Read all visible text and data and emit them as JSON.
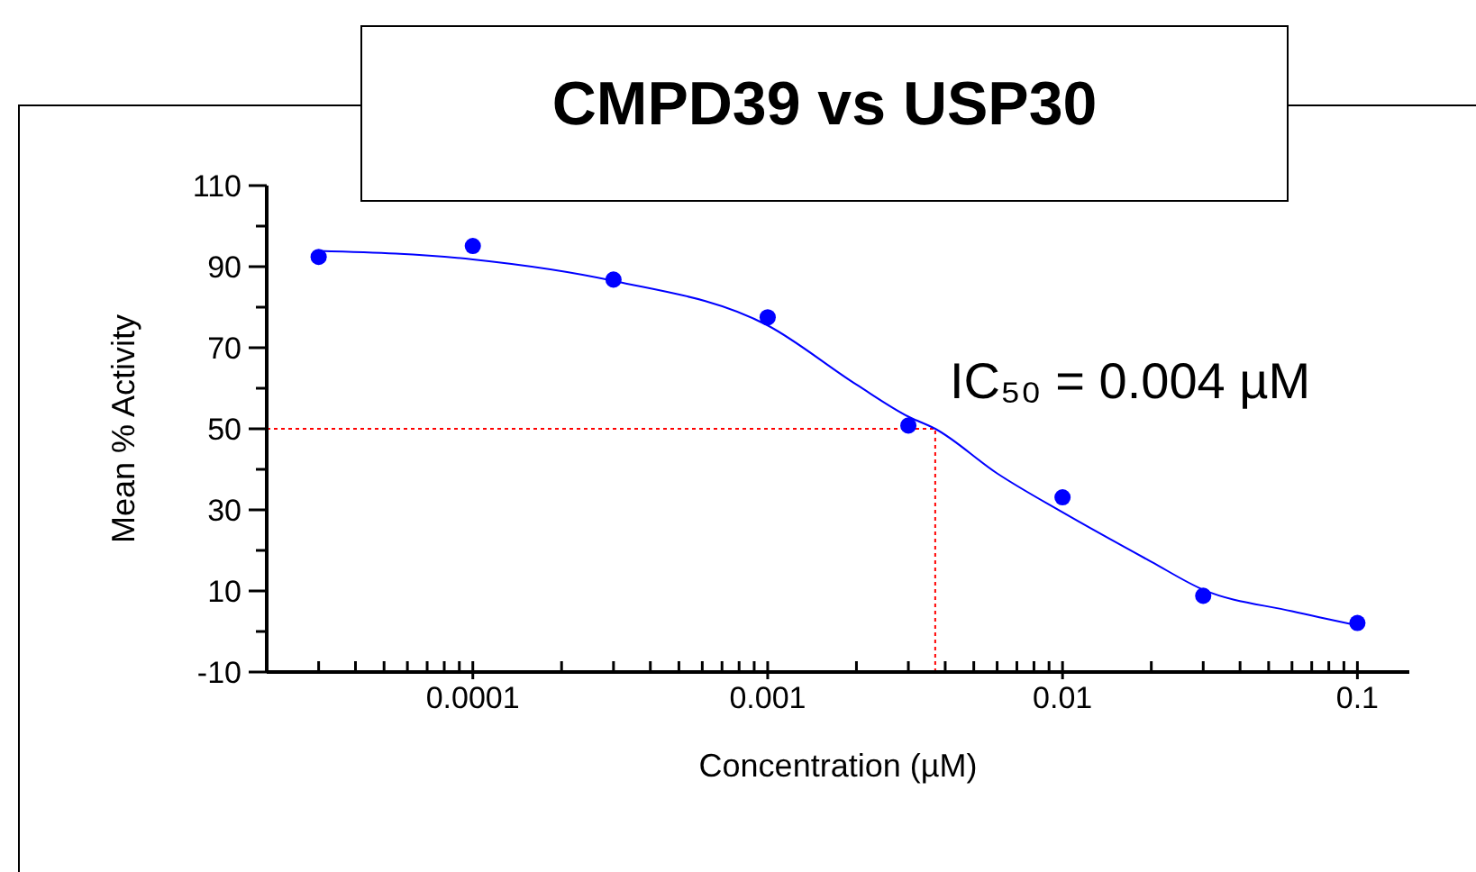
{
  "chart_data": {
    "type": "scatter",
    "title": "CMPD39 vs USP30",
    "xlabel": "Concentration  (µM)",
    "ylabel": "Mean  % Activity",
    "log": "x",
    "xlim": [
      2e-05,
      0.15
    ],
    "xticks": [
      {
        "value": 3e-05,
        "label": null
      },
      {
        "value": 4e-05,
        "label": null
      },
      {
        "value": 5e-05,
        "label": null
      },
      {
        "value": 6e-05,
        "label": null
      },
      {
        "value": 7e-05,
        "label": null
      },
      {
        "value": 8e-05,
        "label": null
      },
      {
        "value": 9e-05,
        "label": null
      },
      0.0001,
      {
        "value": 0.0002,
        "label": null
      },
      {
        "value": 0.0003,
        "label": null
      },
      {
        "value": 0.0004,
        "label": null
      },
      {
        "value": 0.0005,
        "label": null
      },
      {
        "value": 0.0006,
        "label": null
      },
      {
        "value": 0.0007,
        "label": null
      },
      {
        "value": 0.0008,
        "label": null
      },
      {
        "value": 0.0009,
        "label": null
      },
      0.001,
      {
        "value": 0.002,
        "label": null
      },
      {
        "value": 0.003,
        "label": null
      },
      {
        "value": 0.004,
        "label": null
      },
      {
        "value": 0.005,
        "label": null
      },
      {
        "value": 0.006,
        "label": null
      },
      {
        "value": 0.007,
        "label": null
      },
      {
        "value": 0.008,
        "label": null
      },
      {
        "value": 0.009,
        "label": null
      },
      0.01,
      {
        "value": 0.02,
        "label": null
      },
      {
        "value": 0.03,
        "label": null
      },
      {
        "value": 0.04,
        "label": null
      },
      {
        "value": 0.05,
        "label": null
      },
      {
        "value": 0.06,
        "label": null
      },
      {
        "value": 0.07,
        "label": null
      },
      {
        "value": 0.08,
        "label": null
      },
      {
        "value": 0.09,
        "label": null
      },
      0.1
    ],
    "ylim": [
      -10,
      110
    ],
    "yticks": [
      -10,
      {
        "value": 0,
        "label": null
      },
      10,
      {
        "value": 20,
        "label": null
      },
      30,
      {
        "value": 40,
        "label": null
      },
      50,
      {
        "value": 60,
        "label": null
      },
      70,
      {
        "value": 80,
        "label": null
      },
      90,
      {
        "value": 100,
        "label": null
      },
      110
    ],
    "series": [
      {
        "color": "#0000ff",
        "marker": "circle",
        "x": [
          3e-05,
          0.0001,
          0.0003,
          0.001,
          0.003,
          0.01,
          0.03,
          0.1
        ],
        "values": [
          92.4,
          95.1,
          86.8,
          77.5,
          50.8,
          33.1,
          8.8,
          2.1
        ]
      },
      {
        "type": "line",
        "color": "#0000ff",
        "marker": "none",
        "line_style": "solid",
        "x": [
          3e-05,
          0.0001,
          0.0003,
          0.001,
          0.002,
          0.003,
          0.0037,
          0.006,
          0.01,
          0.02,
          0.03,
          0.06,
          0.1
        ],
        "values": [
          93.9,
          91.8,
          86.5,
          75.5,
          60.9,
          53,
          50,
          39,
          29.4,
          17.2,
          10.3,
          5,
          1.5
        ]
      }
    ],
    "ref_lines": [
      {
        "axis": "y",
        "value": 50,
        "color": "#ff0000",
        "line_style": "dotted"
      },
      {
        "axis": "x",
        "value": 0.0037,
        "color": "#ff0000",
        "line_style": "dotted"
      }
    ],
    "annotations": [
      "IC₅₀ = 0.004 µM"
    ]
  }
}
